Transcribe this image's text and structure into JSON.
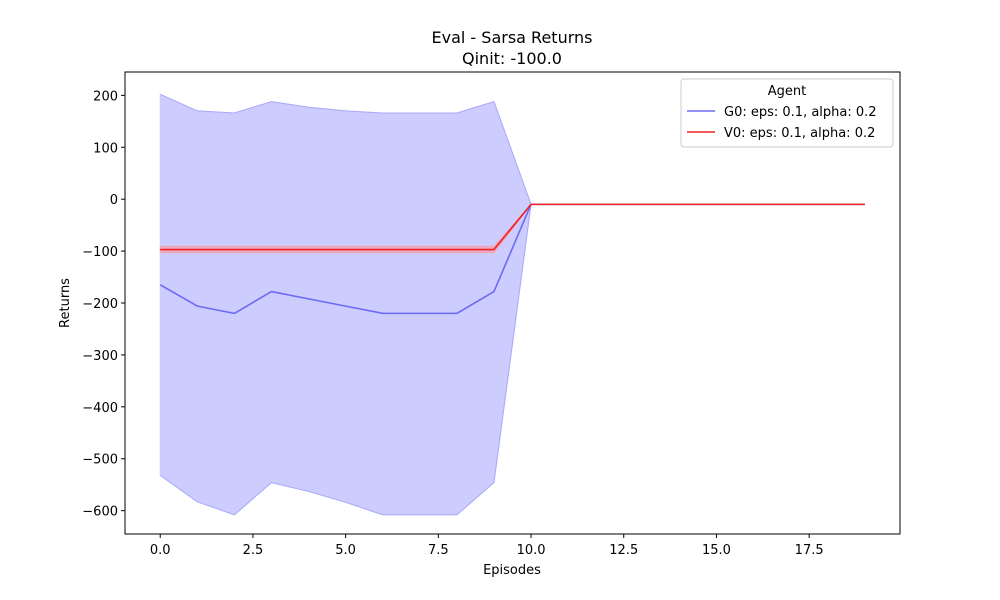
{
  "chart_data": {
    "type": "line",
    "title": "Eval - Sarsa Returns",
    "subtitle": "Qinit: -100.0",
    "xlabel": "Episodes",
    "ylabel": "Returns",
    "xlim": [
      -0.95,
      19.95
    ],
    "ylim": [
      -645,
      245
    ],
    "xticks": [
      0,
      2.5,
      5,
      7.5,
      10,
      12.5,
      15,
      17.5
    ],
    "xtick_labels": [
      "0.0",
      "2.5",
      "5.0",
      "7.5",
      "10.0",
      "12.5",
      "15.0",
      "17.5"
    ],
    "yticks": [
      200,
      100,
      0,
      -100,
      -200,
      -300,
      -400,
      -500,
      -600
    ],
    "ytick_labels": [
      "200",
      "100",
      "0",
      "−100",
      "−200",
      "−300",
      "−400",
      "−500",
      "−600"
    ],
    "grid": false,
    "legend": {
      "title": "Agent",
      "placement": "top-right"
    },
    "x": [
      0,
      1,
      2,
      3,
      4,
      5,
      6,
      7,
      8,
      9,
      10,
      11,
      12,
      13,
      14,
      15,
      16,
      17,
      18,
      19
    ],
    "series": [
      {
        "name": "G0: eps: 0.1, alpha: 0.2",
        "color": "#6b6bf5",
        "band_color": "#ccccff",
        "mean": [
          -165,
          -206,
          -220,
          -178,
          -192,
          -206,
          -220,
          -220,
          -220,
          -178,
          -10,
          -10,
          -10,
          -10,
          -10,
          -10,
          -10,
          -10,
          -10,
          -10
        ],
        "upper": [
          202,
          170,
          166,
          188,
          177,
          170,
          166,
          166,
          166,
          188,
          -10,
          -10,
          -10,
          -10,
          -10,
          -10,
          -10,
          -10,
          -10,
          -10
        ],
        "lower": [
          -532,
          -583,
          -608,
          -546,
          -563,
          -584,
          -608,
          -608,
          -608,
          -546,
          -10,
          -10,
          -10,
          -10,
          -10,
          -10,
          -10,
          -10,
          -10,
          -10
        ]
      },
      {
        "name": "V0: eps: 0.1, alpha: 0.2",
        "color": "#ee2222",
        "band_color": "#f4a3b3",
        "mean": [
          -97,
          -97,
          -97,
          -97,
          -97,
          -97,
          -97,
          -97,
          -97,
          -97,
          -10,
          -10,
          -10,
          -10,
          -10,
          -10,
          -10,
          -10,
          -10,
          -10
        ],
        "upper": [
          -91,
          -91,
          -91,
          -91,
          -91,
          -91,
          -91,
          -91,
          -91,
          -91,
          -10,
          -10,
          -10,
          -10,
          -10,
          -10,
          -10,
          -10,
          -10,
          -10
        ],
        "lower": [
          -103,
          -103,
          -103,
          -103,
          -103,
          -103,
          -103,
          -103,
          -103,
          -103,
          -10,
          -10,
          -10,
          -10,
          -10,
          -10,
          -10,
          -10,
          -10,
          -10
        ]
      }
    ]
  }
}
